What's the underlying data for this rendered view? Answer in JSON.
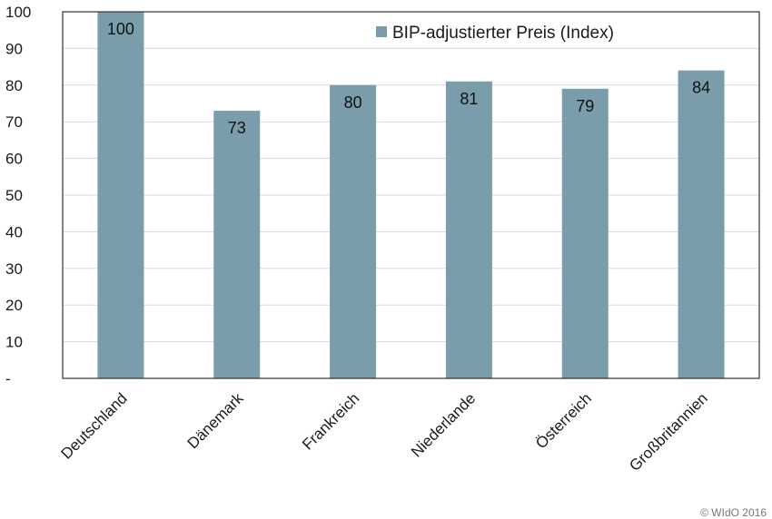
{
  "chart_data": {
    "type": "bar",
    "categories": [
      "Deutschland",
      "Dänemark",
      "Frankreich",
      "Niederlande",
      "Österreich",
      "Großbritannien"
    ],
    "series": [
      {
        "name": "BIP-adjustierter Preis (Index)",
        "values": [
          100,
          73,
          80,
          81,
          79,
          84
        ],
        "color": "#7a9dab"
      }
    ],
    "data_labels": [
      "100",
      "73",
      "80",
      "81",
      "79",
      "84"
    ],
    "y_ticks": [
      "-",
      "10",
      "20",
      "30",
      "40",
      "50",
      "60",
      "70",
      "80",
      "90",
      "100"
    ],
    "ylim": [
      0,
      100
    ],
    "grid": true,
    "legend_position": "top-right",
    "title": "",
    "xlabel": "",
    "ylabel": ""
  },
  "credit": "© WIdO 2016"
}
